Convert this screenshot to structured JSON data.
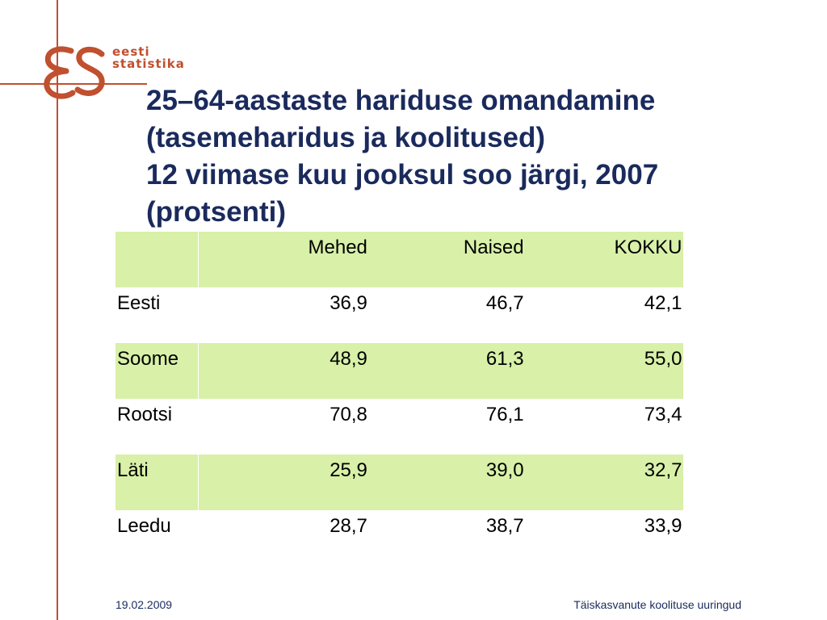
{
  "brand": {
    "logo_text_line1": "eesti",
    "logo_text_line2": "statistika",
    "accent_color": "#c0502f",
    "title_color": "#1a2a5c",
    "row_highlight_color": "#d8f0a8"
  },
  "title": {
    "line1": "25–64-aastaste hariduse omandamine",
    "line2": "(tasemeharidus ja koolitused)",
    "line3": "12 viimase kuu jooksul soo järgi, 2007",
    "line4": "(protsenti)"
  },
  "table": {
    "headers": [
      "",
      "Mehed",
      "Naised",
      "KOKKU"
    ],
    "rows": [
      [
        "Eesti",
        "36,9",
        "46,7",
        "42,1"
      ],
      [
        "Soome",
        "48,9",
        "61,3",
        "55,0"
      ],
      [
        "Rootsi",
        "70,8",
        "76,1",
        "73,4"
      ],
      [
        "Läti",
        "25,9",
        "39,0",
        "32,7"
      ],
      [
        "Leedu",
        "28,7",
        "38,7",
        "33,9"
      ]
    ]
  },
  "footer": {
    "date": "19.02.2009",
    "title": "Täiskasvanute koolituse uuringud"
  }
}
